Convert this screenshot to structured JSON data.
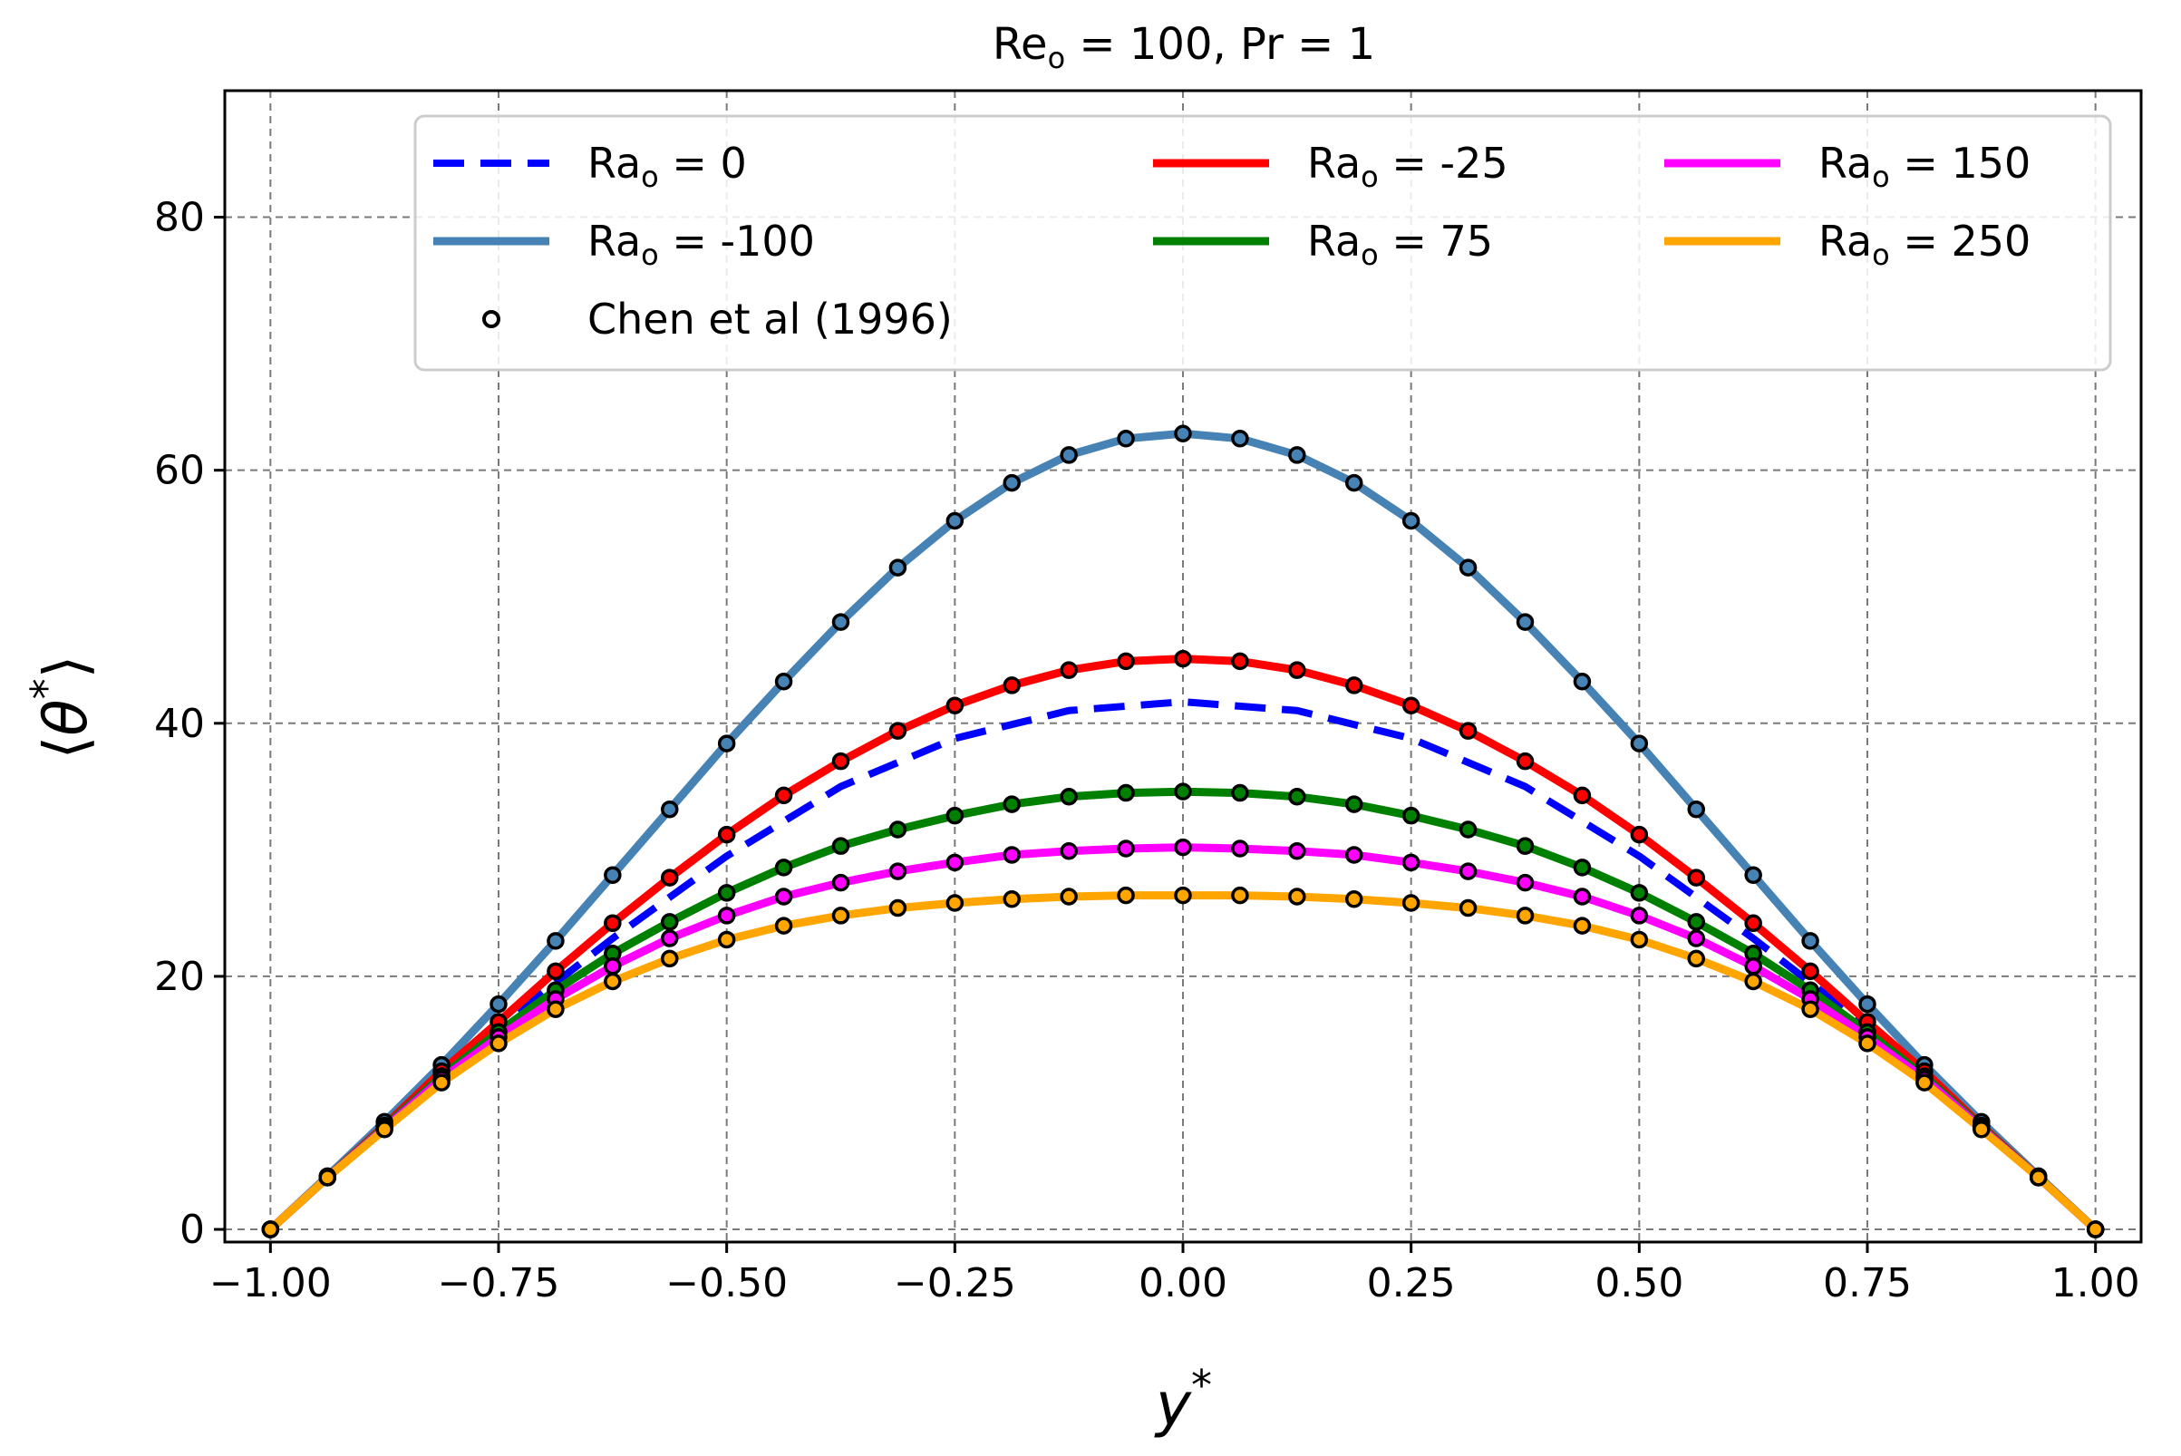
{
  "chart_data": {
    "type": "line",
    "title": "Re_o = 100, Pr = 1",
    "title_parts": {
      "a": "Re",
      "sub": "o",
      "b": " = 100, Pr = 1"
    },
    "xlabel": "y*",
    "xlabel_parts": {
      "base": "y",
      "sup": "*"
    },
    "ylabel": "⟨θ*⟩",
    "ylabel_parts": {
      "open": "⟨",
      "base": "θ",
      "sup": "*",
      "close": "⟩"
    },
    "xlim": [
      -1.05,
      1.05
    ],
    "ylim": [
      -1,
      90
    ],
    "xticks": [
      -1.0,
      -0.75,
      -0.5,
      -0.25,
      0.0,
      0.25,
      0.5,
      0.75,
      1.0
    ],
    "xtick_labels": [
      "−1.00",
      "−0.75",
      "−0.50",
      "−0.25",
      "0.00",
      "0.25",
      "0.50",
      "0.75",
      "1.00"
    ],
    "yticks": [
      0,
      20,
      40,
      60,
      80
    ],
    "ytick_labels": [
      "0",
      "20",
      "40",
      "60",
      "80"
    ],
    "grid": true,
    "legend_position": "top-right",
    "series": [
      {
        "name": "Ra_o = 0",
        "label_parts": {
          "a": "Ra",
          "sub": "o",
          "b": " = 0"
        },
        "color": "#0000ff",
        "style": "dashed",
        "x": [
          -1.0,
          -0.875,
          -0.75,
          -0.625,
          -0.5,
          -0.375,
          -0.25,
          -0.125,
          0.0,
          0.125,
          0.25,
          0.375,
          0.5,
          0.625,
          0.75,
          0.875,
          1.0
        ],
        "y": [
          0,
          8.1,
          16.0,
          23.0,
          29.5,
          35.0,
          38.8,
          41.0,
          41.7,
          41.0,
          38.8,
          35.0,
          29.5,
          23.0,
          16.0,
          8.1,
          0
        ]
      },
      {
        "name": "Ra_o = -100",
        "label_parts": {
          "a": "Ra",
          "sub": "o",
          "b": " = -100"
        },
        "color": "#4682b4",
        "style": "solid",
        "x": [
          -1.0,
          -0.9375,
          -0.875,
          -0.8125,
          -0.75,
          -0.6875,
          -0.625,
          -0.5625,
          -0.5,
          -0.4375,
          -0.375,
          -0.3125,
          -0.25,
          -0.1875,
          -0.125,
          -0.0625,
          0.0,
          0.0625,
          0.125,
          0.1875,
          0.25,
          0.3125,
          0.375,
          0.4375,
          0.5,
          0.5625,
          0.625,
          0.6875,
          0.75,
          0.8125,
          0.875,
          0.9375,
          1.0
        ],
        "y": [
          0,
          4.2,
          8.5,
          13.0,
          17.8,
          22.8,
          28.0,
          33.2,
          38.4,
          43.3,
          48.0,
          52.3,
          56.0,
          59.0,
          61.2,
          62.5,
          62.9,
          62.5,
          61.2,
          59.0,
          56.0,
          52.3,
          48.0,
          43.3,
          38.4,
          33.2,
          28.0,
          22.8,
          17.8,
          13.0,
          8.5,
          4.2,
          0
        ]
      },
      {
        "name": "Ra_o = -25",
        "label_parts": {
          "a": "Ra",
          "sub": "o",
          "b": " = -25"
        },
        "color": "#ff0000",
        "style": "solid",
        "x": [
          -1.0,
          -0.9375,
          -0.875,
          -0.8125,
          -0.75,
          -0.6875,
          -0.625,
          -0.5625,
          -0.5,
          -0.4375,
          -0.375,
          -0.3125,
          -0.25,
          -0.1875,
          -0.125,
          -0.0625,
          0.0,
          0.0625,
          0.125,
          0.1875,
          0.25,
          0.3125,
          0.375,
          0.4375,
          0.5,
          0.5625,
          0.625,
          0.6875,
          0.75,
          0.8125,
          0.875,
          0.9375,
          1.0
        ],
        "y": [
          0,
          4.1,
          8.2,
          12.5,
          16.4,
          20.4,
          24.2,
          27.8,
          31.2,
          34.3,
          37.0,
          39.4,
          41.4,
          43.0,
          44.2,
          44.9,
          45.1,
          44.9,
          44.2,
          43.0,
          41.4,
          39.4,
          37.0,
          34.3,
          31.2,
          27.8,
          24.2,
          20.4,
          16.4,
          12.5,
          8.2,
          4.1,
          0
        ]
      },
      {
        "name": "Ra_o = 75",
        "label_parts": {
          "a": "Ra",
          "sub": "o",
          "b": " = 75"
        },
        "color": "#008000",
        "style": "solid",
        "x": [
          -1.0,
          -0.9375,
          -0.875,
          -0.8125,
          -0.75,
          -0.6875,
          -0.625,
          -0.5625,
          -0.5,
          -0.4375,
          -0.375,
          -0.3125,
          -0.25,
          -0.1875,
          -0.125,
          -0.0625,
          0.0,
          0.0625,
          0.125,
          0.1875,
          0.25,
          0.3125,
          0.375,
          0.4375,
          0.5,
          0.5625,
          0.625,
          0.6875,
          0.75,
          0.8125,
          0.875,
          0.9375,
          1.0
        ],
        "y": [
          0,
          4.1,
          8.1,
          12.1,
          15.6,
          18.9,
          21.8,
          24.3,
          26.6,
          28.6,
          30.3,
          31.6,
          32.7,
          33.6,
          34.2,
          34.5,
          34.6,
          34.5,
          34.2,
          33.6,
          32.7,
          31.6,
          30.3,
          28.6,
          26.6,
          24.3,
          21.8,
          18.9,
          15.6,
          12.1,
          8.1,
          4.1,
          0
        ]
      },
      {
        "name": "Ra_o = 150",
        "label_parts": {
          "a": "Ra",
          "sub": "o",
          "b": " = 150"
        },
        "color": "#ff00ff",
        "style": "solid",
        "x": [
          -1.0,
          -0.9375,
          -0.875,
          -0.8125,
          -0.75,
          -0.6875,
          -0.625,
          -0.5625,
          -0.5,
          -0.4375,
          -0.375,
          -0.3125,
          -0.25,
          -0.1875,
          -0.125,
          -0.0625,
          0.0,
          0.0625,
          0.125,
          0.1875,
          0.25,
          0.3125,
          0.375,
          0.4375,
          0.5,
          0.5625,
          0.625,
          0.6875,
          0.75,
          0.8125,
          0.875,
          0.9375,
          1.0
        ],
        "y": [
          0,
          4.1,
          8.0,
          11.9,
          15.2,
          18.2,
          20.8,
          23.0,
          24.8,
          26.3,
          27.4,
          28.3,
          29.0,
          29.6,
          29.9,
          30.1,
          30.2,
          30.1,
          29.9,
          29.6,
          29.0,
          28.3,
          27.4,
          26.3,
          24.8,
          23.0,
          20.8,
          18.2,
          15.2,
          11.9,
          8.0,
          4.1,
          0
        ]
      },
      {
        "name": "Ra_o = 250",
        "label_parts": {
          "a": "Ra",
          "sub": "o",
          "b": " = 250"
        },
        "color": "#ffa500",
        "style": "solid",
        "x": [
          -1.0,
          -0.9375,
          -0.875,
          -0.8125,
          -0.75,
          -0.6875,
          -0.625,
          -0.5625,
          -0.5,
          -0.4375,
          -0.375,
          -0.3125,
          -0.25,
          -0.1875,
          -0.125,
          -0.0625,
          0.0,
          0.0625,
          0.125,
          0.1875,
          0.25,
          0.3125,
          0.375,
          0.4375,
          0.5,
          0.5625,
          0.625,
          0.6875,
          0.75,
          0.8125,
          0.875,
          0.9375,
          1.0
        ],
        "y": [
          0,
          4.1,
          7.9,
          11.6,
          14.7,
          17.4,
          19.6,
          21.4,
          22.9,
          24.0,
          24.8,
          25.4,
          25.8,
          26.1,
          26.3,
          26.4,
          26.4,
          26.4,
          26.3,
          26.1,
          25.8,
          25.4,
          24.8,
          24.0,
          22.9,
          21.4,
          19.6,
          17.4,
          14.7,
          11.6,
          7.9,
          4.1,
          0
        ]
      }
    ],
    "markers": {
      "name": "Chen et al (1996)",
      "style": "open-circle",
      "edge_color": "#000000",
      "note": "markers drawn on every series except Ra_o = 0"
    }
  }
}
